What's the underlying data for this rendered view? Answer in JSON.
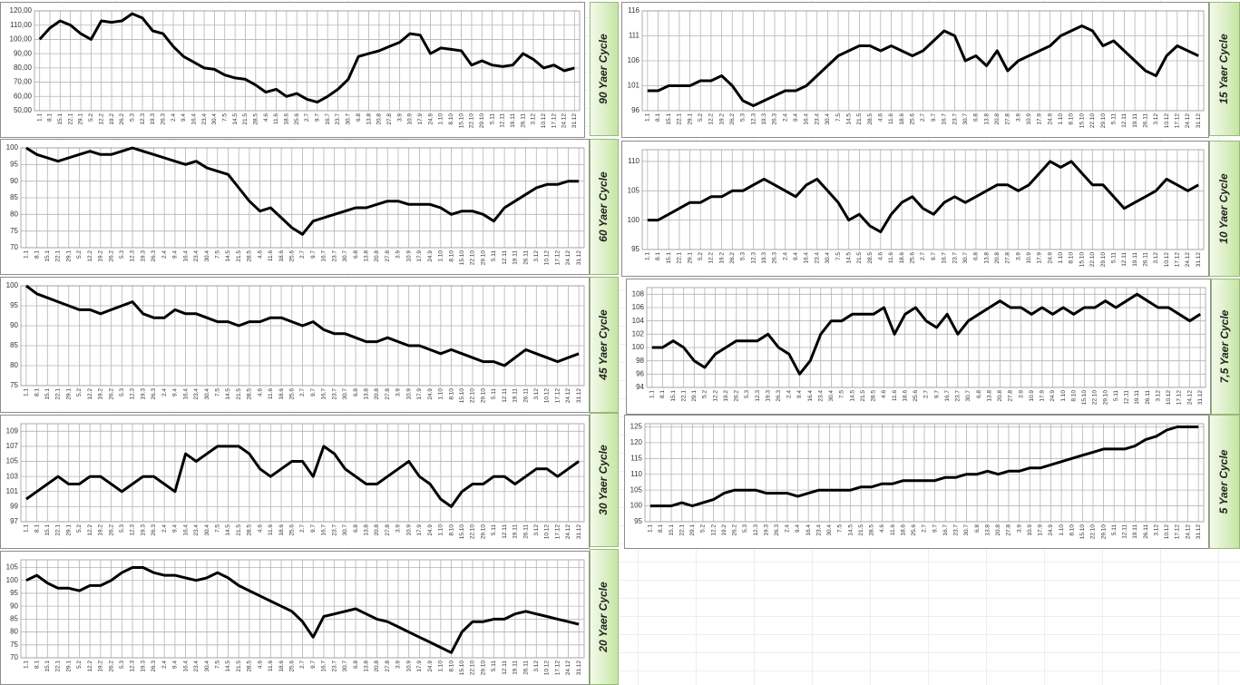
{
  "chart_data": [
    {
      "type": "line",
      "title": "90 Yaer Cycle",
      "color": "#000000",
      "grid": true,
      "categories": [
        "1.1",
        "8.1",
        "15.1",
        "22.1",
        "29.1",
        "5.2",
        "12.2",
        "19.2",
        "26.2",
        "5.3",
        "12.3",
        "19.3",
        "26.3",
        "2.4",
        "9.4",
        "16.4",
        "23.4",
        "30.4",
        "7.5",
        "14.5",
        "21.5",
        "28.5",
        "4.6",
        "11.6",
        "18.6",
        "25.6",
        "2.7",
        "9.7",
        "16.7",
        "23.7",
        "30.7",
        "6.8",
        "13.8",
        "20.8",
        "27.8",
        "3.9",
        "10.9",
        "17.9",
        "24.9",
        "1.10",
        "8.10",
        "15.10",
        "22.10",
        "29.10",
        "5.11",
        "12.11",
        "19.11",
        "26.11",
        "3.12",
        "10.12",
        "17.12",
        "24.12",
        "31.12"
      ],
      "values": [
        100,
        108,
        113,
        110,
        104,
        100,
        113,
        112,
        113,
        118,
        115,
        106,
        104,
        95,
        88,
        84,
        80,
        79,
        75,
        73,
        72,
        68,
        63,
        65,
        60,
        62,
        58,
        56,
        60,
        65,
        72,
        88,
        90,
        92,
        95,
        98,
        104,
        103,
        90,
        94,
        93,
        92,
        82,
        85,
        82,
        81,
        82,
        90,
        86,
        80,
        82,
        78,
        80
      ],
      "ylim": [
        50,
        120
      ],
      "yticks": [
        {
          "value": 50,
          "label": "50,00"
        },
        {
          "value": 60,
          "label": "60,00"
        },
        {
          "value": 70,
          "label": "70,00"
        },
        {
          "value": 80,
          "label": "80,00"
        },
        {
          "value": 90,
          "label": "90,00"
        },
        {
          "value": 100,
          "label": "100,00"
        },
        {
          "value": 110,
          "label": "110,00"
        },
        {
          "value": 120,
          "label": "120,00"
        }
      ]
    },
    {
      "type": "line",
      "title": "60 Yaer Cycle",
      "color": "#000000",
      "grid": true,
      "categories": [
        "1.1",
        "8.1",
        "15.1",
        "22.1",
        "29.1",
        "5.2",
        "12.2",
        "19.2",
        "26.2",
        "5.3",
        "12.3",
        "19.3",
        "26.3",
        "2.4",
        "9.4",
        "16.4",
        "23.4",
        "30.4",
        "7.5",
        "14.5",
        "21.5",
        "28.5",
        "4.6",
        "11.6",
        "18.6",
        "25.6",
        "2.7",
        "9.7",
        "16.7",
        "23.7",
        "30.7",
        "6.8",
        "13.8",
        "20.8",
        "27.8",
        "3.9",
        "10.9",
        "17.9",
        "24.9",
        "1.10",
        "8.10",
        "15.10",
        "22.10",
        "29.10",
        "5.11",
        "12.11",
        "19.11",
        "26.11",
        "3.12",
        "10.12",
        "17.12",
        "24.12",
        "31.12"
      ],
      "values": [
        100,
        98,
        97,
        96,
        97,
        98,
        99,
        98,
        98,
        99,
        100,
        99,
        98,
        97,
        96,
        95,
        96,
        94,
        93,
        92,
        88,
        84,
        81,
        82,
        79,
        76,
        74,
        78,
        79,
        80,
        81,
        82,
        82,
        83,
        84,
        84,
        83,
        83,
        83,
        82,
        80,
        81,
        81,
        80,
        78,
        82,
        84,
        86,
        88,
        89,
        89,
        90,
        90
      ],
      "ylim": [
        70,
        100
      ],
      "yticks": [
        70,
        75,
        80,
        85,
        90,
        95,
        100
      ]
    },
    {
      "type": "line",
      "title": "45 Yaer Cycle",
      "color": "#000000",
      "grid": true,
      "categories": [
        "1.1",
        "8.1",
        "15.1",
        "22.1",
        "29.1",
        "5.2",
        "12.2",
        "19.2",
        "26.2",
        "5.3",
        "12.3",
        "19.3",
        "26.3",
        "2.4",
        "9.4",
        "16.4",
        "23.4",
        "30.4",
        "7.5",
        "14.5",
        "21.5",
        "28.5",
        "4.6",
        "11.6",
        "18.6",
        "25.6",
        "2.7",
        "9.7",
        "16.7",
        "23.7",
        "30.7",
        "6.8",
        "13.8",
        "20.8",
        "27.8",
        "3.9",
        "10.9",
        "17.9",
        "24.9",
        "1.10",
        "8.10",
        "15.10",
        "22.10",
        "29.10",
        "5.11",
        "12.11",
        "19.11",
        "26.11",
        "3.12",
        "10.12",
        "17.12",
        "24.12",
        "31.12"
      ],
      "values": [
        100,
        98,
        97,
        96,
        95,
        94,
        94,
        93,
        94,
        95,
        96,
        93,
        92,
        92,
        94,
        93,
        93,
        92,
        91,
        91,
        90,
        91,
        91,
        92,
        92,
        91,
        90,
        91,
        89,
        88,
        88,
        87,
        86,
        86,
        87,
        86,
        85,
        85,
        84,
        83,
        84,
        83,
        82,
        81,
        81,
        80,
        82,
        84,
        83,
        82,
        81,
        82,
        83
      ],
      "ylim": [
        75,
        100
      ],
      "yticks": [
        75,
        80,
        85,
        90,
        95,
        100
      ]
    },
    {
      "type": "line",
      "title": "30 Yaer Cycle",
      "color": "#000000",
      "grid": true,
      "categories": [
        "1.1",
        "8.1",
        "15.1",
        "22.1",
        "29.1",
        "5.2",
        "12.2",
        "19.2",
        "26.2",
        "5.3",
        "12.3",
        "19.3",
        "26.3",
        "2.4",
        "9.4",
        "16.4",
        "23.4",
        "30.4",
        "7.5",
        "14.5",
        "21.5",
        "28.5",
        "4.6",
        "11.6",
        "18.6",
        "25.6",
        "2.7",
        "9.7",
        "16.7",
        "23.7",
        "30.7",
        "6.8",
        "13.8",
        "20.8",
        "27.8",
        "3.9",
        "10.9",
        "17.9",
        "24.9",
        "1.10",
        "8.10",
        "15.10",
        "22.10",
        "29.10",
        "5.11",
        "12.11",
        "19.11",
        "26.11",
        "3.12",
        "10.12",
        "17.12",
        "24.12",
        "31.12"
      ],
      "values": [
        100,
        101,
        102,
        103,
        102,
        102,
        103,
        103,
        102,
        101,
        102,
        103,
        103,
        102,
        101,
        106,
        105,
        106,
        107,
        107,
        107,
        106,
        104,
        103,
        104,
        105,
        105,
        103,
        107,
        106,
        104,
        103,
        102,
        102,
        103,
        104,
        105,
        103,
        102,
        100,
        99,
        101,
        102,
        102,
        103,
        103,
        102,
        103,
        104,
        104,
        103,
        104,
        105
      ],
      "ylim": [
        97,
        110
      ],
      "yticks": [
        97,
        99,
        101,
        103,
        105,
        107,
        109
      ]
    },
    {
      "type": "line",
      "title": "20 Yaer Cycle",
      "color": "#000000",
      "grid": true,
      "categories": [
        "1.1",
        "8.1",
        "15.1",
        "22.1",
        "29.1",
        "5.2",
        "12.2",
        "19.2",
        "26.2",
        "5.3",
        "12.3",
        "19.3",
        "26.3",
        "2.4",
        "9.4",
        "16.4",
        "23.4",
        "30.4",
        "7.5",
        "14.5",
        "21.5",
        "28.5",
        "4.6",
        "11.6",
        "18.6",
        "25.6",
        "2.7",
        "9.7",
        "16.7",
        "23.7",
        "30.7",
        "6.8",
        "13.8",
        "20.8",
        "27.8",
        "3.9",
        "10.9",
        "17.9",
        "24.9",
        "1.10",
        "8.10",
        "15.10",
        "22.10",
        "29.10",
        "5.11",
        "12.11",
        "19.11",
        "26.11",
        "3.12",
        "10.12",
        "17.12",
        "24.12",
        "31.12"
      ],
      "values": [
        100,
        102,
        99,
        97,
        97,
        96,
        98,
        98,
        100,
        103,
        105,
        105,
        103,
        102,
        102,
        101,
        100,
        101,
        103,
        101,
        98,
        96,
        94,
        92,
        90,
        88,
        84,
        78,
        86,
        87,
        88,
        89,
        87,
        85,
        84,
        82,
        80,
        78,
        76,
        74,
        72,
        80,
        84,
        84,
        85,
        85,
        87,
        88,
        87,
        86,
        85,
        84,
        83
      ],
      "ylim": [
        70,
        108
      ],
      "yticks": [
        70,
        75,
        80,
        85,
        90,
        95,
        100,
        105
      ]
    },
    {
      "type": "line",
      "title": "15 Yaer Cycle",
      "color": "#000000",
      "grid": true,
      "categories": [
        "1.1",
        "8.1",
        "15.1",
        "22.1",
        "29.1",
        "5.2",
        "12.2",
        "19.2",
        "26.2",
        "5.3",
        "12.3",
        "19.3",
        "26.3",
        "2.4",
        "9.4",
        "16.4",
        "23.4",
        "30.4",
        "7.5",
        "14.5",
        "21.5",
        "28.5",
        "4.6",
        "11.6",
        "18.6",
        "25.6",
        "2.7",
        "9.7",
        "16.7",
        "23.7",
        "30.7",
        "6.8",
        "13.8",
        "20.8",
        "27.8",
        "3.9",
        "10.9",
        "17.9",
        "24.9",
        "1.10",
        "8.10",
        "15.10",
        "22.10",
        "29.10",
        "5.11",
        "12.11",
        "19.11",
        "26.11",
        "3.12",
        "10.12",
        "17.12",
        "24.12",
        "31.12"
      ],
      "values": [
        100,
        100,
        101,
        101,
        101,
        102,
        102,
        103,
        101,
        98,
        97,
        98,
        99,
        100,
        100,
        101,
        103,
        105,
        107,
        108,
        109,
        109,
        108,
        109,
        108,
        107,
        108,
        110,
        112,
        111,
        106,
        107,
        105,
        108,
        104,
        106,
        107,
        108,
        109,
        111,
        112,
        113,
        112,
        109,
        110,
        108,
        106,
        104,
        103,
        107,
        109,
        108,
        107
      ],
      "ylim": [
        96,
        116
      ],
      "yticks": [
        96,
        101,
        106,
        111,
        116
      ]
    },
    {
      "type": "line",
      "title": "10 Yaer Cycle",
      "color": "#000000",
      "grid": true,
      "categories": [
        "1.1",
        "8.1",
        "15.1",
        "22.1",
        "29.1",
        "5.2",
        "12.2",
        "19.2",
        "26.2",
        "5.3",
        "12.3",
        "19.3",
        "26.3",
        "2.4",
        "9.4",
        "16.4",
        "23.4",
        "30.4",
        "7.5",
        "14.5",
        "21.5",
        "28.5",
        "4.6",
        "11.6",
        "18.6",
        "25.6",
        "2.7",
        "9.7",
        "16.7",
        "23.7",
        "30.7",
        "6.8",
        "13.8",
        "20.8",
        "27.8",
        "3.9",
        "10.9",
        "17.9",
        "24.9",
        "1.10",
        "8.10",
        "15.10",
        "22.10",
        "29.10",
        "5.11",
        "12.11",
        "19.11",
        "26.11",
        "3.12",
        "10.12",
        "17.12",
        "24.12",
        "31.12"
      ],
      "values": [
        100,
        100,
        101,
        102,
        103,
        103,
        104,
        104,
        105,
        105,
        106,
        107,
        106,
        105,
        104,
        106,
        107,
        105,
        103,
        100,
        101,
        99,
        98,
        101,
        103,
        104,
        102,
        101,
        103,
        104,
        103,
        104,
        105,
        106,
        106,
        105,
        106,
        108,
        110,
        109,
        110,
        108,
        106,
        106,
        104,
        102,
        103,
        104,
        105,
        107,
        106,
        105,
        106
      ],
      "ylim": [
        95,
        112
      ],
      "yticks": [
        95,
        100,
        105,
        110
      ]
    },
    {
      "type": "line",
      "title": "7,5 Yaer Cycle",
      "color": "#000000",
      "grid": true,
      "categories": [
        "1.1",
        "8.1",
        "15.1",
        "22.1",
        "29.1",
        "5.2",
        "12.2",
        "19.2",
        "26.2",
        "5.3",
        "12.3",
        "19.3",
        "26.3",
        "2.4",
        "9.4",
        "16.4",
        "23.4",
        "30.4",
        "7.5",
        "14.5",
        "21.5",
        "28.5",
        "4.6",
        "11.6",
        "18.6",
        "25.6",
        "2.7",
        "9.7",
        "16.7",
        "23.7",
        "30.7",
        "6.8",
        "13.8",
        "20.8",
        "27.8",
        "3.9",
        "10.9",
        "17.9",
        "24.9",
        "1.10",
        "8.10",
        "15.10",
        "22.10",
        "29.10",
        "5.11",
        "12.11",
        "19.11",
        "26.11",
        "3.12",
        "10.12",
        "17.12",
        "24.12",
        "31.12"
      ],
      "values": [
        100,
        100,
        101,
        100,
        98,
        97,
        99,
        100,
        101,
        101,
        101,
        102,
        100,
        99,
        96,
        98,
        102,
        104,
        104,
        105,
        105,
        105,
        106,
        102,
        105,
        106,
        104,
        103,
        105,
        102,
        104,
        105,
        106,
        107,
        106,
        106,
        105,
        106,
        105,
        106,
        105,
        106,
        106,
        107,
        106,
        107,
        108,
        107,
        106,
        106,
        105,
        104,
        105
      ],
      "ylim": [
        94,
        109
      ],
      "yticks": [
        94,
        96,
        98,
        100,
        102,
        104,
        106,
        108
      ]
    },
    {
      "type": "line",
      "title": "5 Yaer Cycle",
      "color": "#000000",
      "grid": true,
      "categories": [
        "1.1",
        "8.1",
        "15.1",
        "22.1",
        "29.1",
        "5.2",
        "12.2",
        "19.2",
        "26.2",
        "5.3",
        "12.3",
        "19.3",
        "26.3",
        "2.4",
        "9.4",
        "16.4",
        "23.4",
        "30.4",
        "7.5",
        "14.5",
        "21.5",
        "28.5",
        "4.6",
        "11.6",
        "18.6",
        "25.6",
        "2.7",
        "9.7",
        "16.7",
        "23.7",
        "30.7",
        "6.8",
        "13.8",
        "20.8",
        "27.8",
        "3.9",
        "10.9",
        "17.9",
        "24.9",
        "1.10",
        "8.10",
        "15.10",
        "22.10",
        "29.10",
        "5.11",
        "12.11",
        "19.11",
        "26.11",
        "3.12",
        "10.12",
        "17.12",
        "24.12",
        "31.12"
      ],
      "values": [
        100,
        100,
        100,
        101,
        100,
        101,
        102,
        104,
        105,
        105,
        105,
        104,
        104,
        104,
        103,
        104,
        105,
        105,
        105,
        105,
        106,
        106,
        107,
        107,
        108,
        108,
        108,
        108,
        109,
        109,
        110,
        110,
        111,
        110,
        111,
        111,
        112,
        112,
        113,
        114,
        115,
        116,
        117,
        118,
        118,
        118,
        119,
        121,
        122,
        124,
        125,
        125,
        125
      ],
      "ylim": [
        95,
        126
      ],
      "yticks": [
        95,
        100,
        105,
        110,
        115,
        120,
        125
      ]
    }
  ]
}
